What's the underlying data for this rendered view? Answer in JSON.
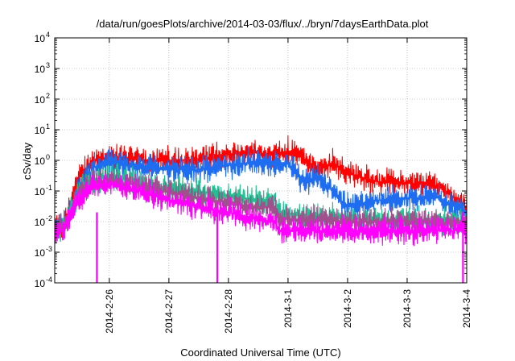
{
  "chart_data": {
    "type": "line",
    "title": "/data/run/goesPlots/archive/2014-03-03/flux/../bryn/7daysEarthData.plot",
    "xlabel": "Coordinated Universal Time (UTC)",
    "ylabel": "cSv/day",
    "yscale": "log",
    "ylim_exponents": [
      -4,
      4
    ],
    "y_tick_exponents": [
      -4,
      -3,
      -2,
      -1,
      0,
      1,
      2,
      3,
      4
    ],
    "y_tick_base": "10",
    "xlim": [
      "2014-02-25 02:00",
      "2014-03-04 00:00"
    ],
    "x_ticks": [
      "2014-2-26",
      "2014-2-27",
      "2014-2-28",
      "2014-3-1",
      "2014-3-2",
      "2014-3-3",
      "2014-3-4"
    ],
    "grid": true,
    "legend": false,
    "series": [
      {
        "color": "#ff0000",
        "x_days_start": "2014-02-25 02:00",
        "points": [
          [
            "2014-02-25 02:00",
            0.006
          ],
          [
            "2014-02-25 06:00",
            0.01
          ],
          [
            "2014-02-25 12:00",
            0.3
          ],
          [
            "2014-02-25 18:00",
            1.0
          ],
          [
            "2014-02-26 00:00",
            1.3
          ],
          [
            "2014-02-26 06:00",
            1.2
          ],
          [
            "2014-02-26 12:00",
            1.0
          ],
          [
            "2014-02-27 00:00",
            1.0
          ],
          [
            "2014-02-27 12:00",
            1.1
          ],
          [
            "2014-02-28 00:00",
            1.6
          ],
          [
            "2014-02-28 12:00",
            1.8
          ],
          [
            "2014-02-28 18:00",
            1.5
          ],
          [
            "2014-03-01 00:00",
            2.0
          ],
          [
            "2014-03-01 06:00",
            1.2
          ],
          [
            "2014-03-01 12:00",
            0.5
          ],
          [
            "2014-03-01 18:00",
            0.8
          ],
          [
            "2014-03-02 00:00",
            0.4
          ],
          [
            "2014-03-02 12:00",
            0.2
          ],
          [
            "2014-03-03 00:00",
            0.18
          ],
          [
            "2014-03-03 12:00",
            0.15
          ],
          [
            "2014-03-04 00:00",
            0.03
          ]
        ]
      },
      {
        "color": "#1e6cf0",
        "points": [
          [
            "2014-02-25 02:00",
            0.005
          ],
          [
            "2014-02-25 06:00",
            0.008
          ],
          [
            "2014-02-25 12:00",
            0.15
          ],
          [
            "2014-02-25 18:00",
            0.6
          ],
          [
            "2014-02-26 00:00",
            0.9
          ],
          [
            "2014-02-26 06:00",
            0.7
          ],
          [
            "2014-02-26 12:00",
            0.6
          ],
          [
            "2014-02-27 00:00",
            0.5
          ],
          [
            "2014-02-27 12:00",
            0.5
          ],
          [
            "2014-02-28 00:00",
            0.7
          ],
          [
            "2014-02-28 12:00",
            0.9
          ],
          [
            "2014-02-28 18:00",
            0.7
          ],
          [
            "2014-03-01 00:00",
            0.8
          ],
          [
            "2014-03-01 06:00",
            0.2
          ],
          [
            "2014-03-01 12:00",
            0.25
          ],
          [
            "2014-03-01 18:00",
            0.1
          ],
          [
            "2014-03-02 00:00",
            0.03
          ],
          [
            "2014-03-02 12:00",
            0.05
          ],
          [
            "2014-03-03 00:00",
            0.06
          ],
          [
            "2014-03-03 12:00",
            0.06
          ],
          [
            "2014-03-04 00:00",
            0.02
          ]
        ]
      },
      {
        "color": "#20c090",
        "points": [
          [
            "2014-02-25 02:00",
            0.005
          ],
          [
            "2014-02-25 06:00",
            0.007
          ],
          [
            "2014-02-25 12:00",
            0.1
          ],
          [
            "2014-02-25 18:00",
            0.25
          ],
          [
            "2014-02-26 00:00",
            0.3
          ],
          [
            "2014-02-26 12:00",
            0.2
          ],
          [
            "2014-02-27 00:00",
            0.12
          ],
          [
            "2014-02-27 12:00",
            0.09
          ],
          [
            "2014-02-28 00:00",
            0.07
          ],
          [
            "2014-02-28 12:00",
            0.05
          ],
          [
            "2014-02-28 19:00",
            0.05
          ],
          [
            "2014-02-28 20:00",
            0.02
          ],
          [
            "2014-03-01 12:00",
            0.015
          ],
          [
            "2014-03-02 00:00",
            0.012
          ],
          [
            "2014-03-03 00:00",
            0.011
          ],
          [
            "2014-03-04 00:00",
            0.01
          ]
        ]
      },
      {
        "color": "#a0508c",
        "points": [
          [
            "2014-02-25 02:00",
            0.005
          ],
          [
            "2014-02-25 06:00",
            0.007
          ],
          [
            "2014-02-25 12:00",
            0.08
          ],
          [
            "2014-02-25 18:00",
            0.2
          ],
          [
            "2014-02-26 00:00",
            0.22
          ],
          [
            "2014-02-26 12:00",
            0.15
          ],
          [
            "2014-02-27 00:00",
            0.09
          ],
          [
            "2014-02-27 12:00",
            0.06
          ],
          [
            "2014-02-28 00:00",
            0.04
          ],
          [
            "2014-02-28 12:00",
            0.03
          ],
          [
            "2014-02-28 19:00",
            0.03
          ],
          [
            "2014-02-28 20:00",
            0.012
          ],
          [
            "2014-03-01 12:00",
            0.011
          ],
          [
            "2014-03-02 00:00",
            0.01
          ],
          [
            "2014-03-03 00:00",
            0.01
          ],
          [
            "2014-03-04 00:00",
            0.009
          ]
        ]
      },
      {
        "color": "#ff00ff",
        "points": [
          [
            "2014-02-25 02:00",
            0.004
          ],
          [
            "2014-02-25 06:00",
            0.006
          ],
          [
            "2014-02-25 12:00",
            0.05
          ],
          [
            "2014-02-25 18:00",
            0.15
          ],
          [
            "2014-02-26 00:00",
            0.17
          ],
          [
            "2014-02-26 12:00",
            0.1
          ],
          [
            "2014-02-27 00:00",
            0.05
          ],
          [
            "2014-02-27 12:00",
            0.03
          ],
          [
            "2014-02-28 00:00",
            0.02
          ],
          [
            "2014-02-28 12:00",
            0.012
          ],
          [
            "2014-02-28 19:00",
            0.01
          ],
          [
            "2014-02-28 20:00",
            0.005
          ],
          [
            "2014-03-01 12:00",
            0.005
          ],
          [
            "2014-03-02 00:00",
            0.005
          ],
          [
            "2014-03-03 00:00",
            0.005
          ],
          [
            "2014-03-04 00:00",
            0.005
          ]
        ]
      }
    ],
    "dropouts": [
      {
        "color": "#ff00ff",
        "x": "2014-02-25 19:00",
        "y": 0.0001
      },
      {
        "color": "#ff00ff",
        "x": "2014-02-27 19:30",
        "y": 0.0001
      },
      {
        "color": "#ff00ff",
        "x": "2014-03-03 22:30",
        "y": 0.0001
      }
    ]
  }
}
